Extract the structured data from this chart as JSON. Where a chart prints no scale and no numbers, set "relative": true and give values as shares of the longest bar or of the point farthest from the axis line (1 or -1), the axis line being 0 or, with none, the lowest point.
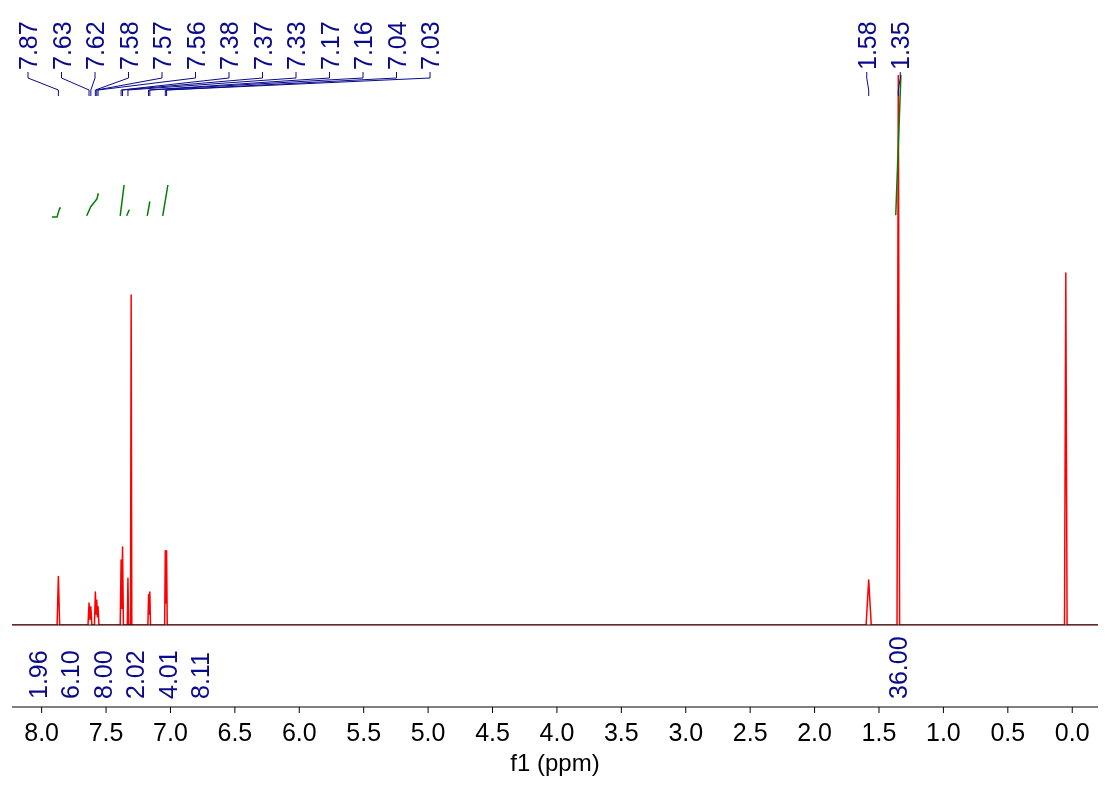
{
  "chart_data": {
    "type": "line",
    "xlabel": "f1 (ppm)",
    "relative": true,
    "xlim": [
      8.23,
      -0.2
    ],
    "xticks": [
      {
        "value": 8,
        "label": "8.0"
      },
      {
        "value": 7.5,
        "label": "7.5"
      },
      {
        "value": 7,
        "label": "7.0"
      },
      {
        "value": 6.5,
        "label": "6.5"
      },
      {
        "value": 6,
        "label": "6.0"
      },
      {
        "value": 5.5,
        "label": "5.5"
      },
      {
        "value": 5,
        "label": "5.0"
      },
      {
        "value": 4.5,
        "label": "4.5"
      },
      {
        "value": 4,
        "label": "4.0"
      },
      {
        "value": 3.5,
        "label": "3.5"
      },
      {
        "value": 3,
        "label": "3.0"
      },
      {
        "value": 2.5,
        "label": "2.5"
      },
      {
        "value": 2,
        "label": "2.0"
      },
      {
        "value": 1.5,
        "label": "1.5"
      },
      {
        "value": 1,
        "label": "1.0"
      },
      {
        "value": 0.5,
        "label": "0.5"
      },
      {
        "value": 0,
        "label": "0.0"
      }
    ],
    "series": [
      {
        "color": "#ff0000",
        "x": [
          8.23,
          7.88,
          7.87,
          7.86,
          7.64,
          7.632,
          7.625,
          7.618,
          7.61,
          7.59,
          7.583,
          7.577,
          7.572,
          7.567,
          7.562,
          7.555,
          7.39,
          7.383,
          7.377,
          7.372,
          7.365,
          7.335,
          7.33,
          7.325,
          7.31,
          7.305,
          7.3,
          7.175,
          7.17,
          7.165,
          7.16,
          7.155,
          7.045,
          7.04,
          7.035,
          7.03,
          7.025,
          1.6,
          1.58,
          1.56,
          1.36,
          1.35,
          1.34,
          0.06,
          0.05,
          0.04,
          -0.2
        ],
        "values": [
          0,
          0,
          0.088,
          0,
          0,
          0.04,
          0.01,
          0.033,
          0,
          0,
          0.06,
          0.02,
          0.045,
          0.015,
          0.033,
          0,
          0,
          0.118,
          0.03,
          0.142,
          0,
          0,
          0.085,
          0,
          0,
          0.6,
          0,
          0,
          0.055,
          0.02,
          0.06,
          0,
          0,
          0.135,
          0.04,
          0.135,
          0,
          0,
          0.082,
          0,
          0,
          1,
          0,
          0,
          0.64,
          0,
          0
        ]
      },
      {
        "color": "#008000",
        "x": [
          7.92,
          7.88,
          7.86,
          7.85,
          7.8,
          7.65,
          7.62,
          7.57,
          7.56,
          7.5,
          7.39,
          7.36,
          7.35,
          7.34,
          7.32,
          7.25,
          7.18,
          7.16,
          7.1,
          7.06,
          7.02,
          4,
          1.37,
          1.33
        ],
        "values": [
          0.742,
          0.742,
          0.758,
          0.758,
          null,
          0.744,
          0.76,
          0.775,
          0.785,
          null,
          0.744,
          0.8,
          null,
          0.744,
          0.755,
          null,
          0.744,
          0.77,
          null,
          0.744,
          0.8,
          null,
          0.745,
          1
        ]
      }
    ],
    "annotations": [
      {
        "text": "7.87",
        "x": 7.87
      },
      {
        "text": "7.63",
        "x": 7.632
      },
      {
        "text": "7.62",
        "x": 7.618
      },
      {
        "text": "7.58",
        "x": 7.583
      },
      {
        "text": "7.57",
        "x": 7.572
      },
      {
        "text": "7.56",
        "x": 7.562
      },
      {
        "text": "7.38",
        "x": 7.383
      },
      {
        "text": "7.37",
        "x": 7.372
      },
      {
        "text": "7.33",
        "x": 7.33
      },
      {
        "text": "7.17",
        "x": 7.17
      },
      {
        "text": "7.16",
        "x": 7.16
      },
      {
        "text": "7.04",
        "x": 7.04
      },
      {
        "text": "7.03",
        "x": 7.03
      },
      {
        "text": "1.58",
        "x": 1.58
      },
      {
        "text": "1.35",
        "x": 1.35
      },
      "1.96",
      "6.10",
      "8.00",
      "2.02",
      "4.01",
      "8.11",
      "36.00"
    ]
  }
}
